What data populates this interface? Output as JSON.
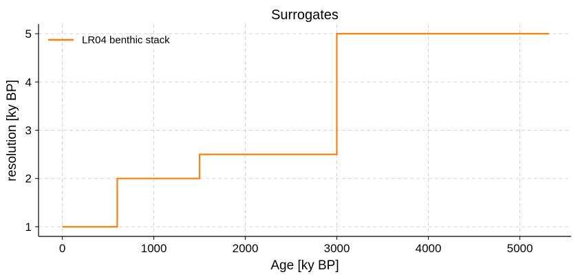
{
  "chart_data": {
    "type": "line",
    "title": "Surrogates",
    "xlabel": "Age [ky BP]",
    "ylabel": "resolution [ky BP]",
    "xlim": [
      -260,
      5560
    ],
    "ylim": [
      0.8,
      5.2
    ],
    "xticks": [
      0,
      1000,
      2000,
      3000,
      4000,
      5000
    ],
    "yticks": [
      1,
      2,
      3,
      4,
      5
    ],
    "grid": true,
    "legend_position": "top-left",
    "series": [
      {
        "name": "LR04 benthic stack",
        "color": "#ff7f0e",
        "step": true,
        "x": [
          0,
          600,
          600,
          1500,
          1500,
          3000,
          3000,
          5320
        ],
        "y": [
          1,
          1,
          2,
          2,
          2.5,
          2.5,
          5,
          5
        ]
      }
    ]
  }
}
